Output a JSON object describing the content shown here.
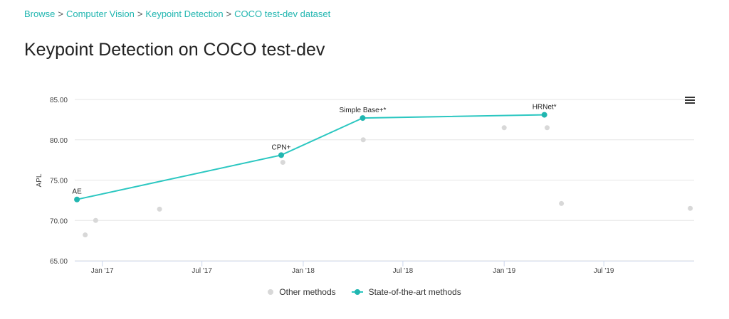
{
  "breadcrumb": {
    "items": [
      "Browse",
      "Computer Vision",
      "Keypoint Detection",
      "COCO test-dev dataset"
    ],
    "separator": ">"
  },
  "page": {
    "title": "Keypoint Detection on COCO test-dev"
  },
  "colors": {
    "accent": "#21b6b0",
    "sota_line": "#2bc7c1",
    "other_points": "#d8d8d8",
    "gridline": "#e6e6e6"
  },
  "menu": {
    "icon": "hamburger-menu-icon"
  },
  "chart_data": {
    "type": "scatter",
    "ylabel": "APL",
    "xlabel": "",
    "ylim": [
      65,
      85
    ],
    "yticks": [
      "65.00",
      "70.00",
      "75.00",
      "80.00",
      "85.00"
    ],
    "xlim": [
      "2016-11-12",
      "2019-12-12"
    ],
    "xticks": [
      {
        "date": "2017-01-01",
        "label": "Jan '17"
      },
      {
        "date": "2017-07-01",
        "label": "Jul '17"
      },
      {
        "date": "2018-01-01",
        "label": "Jan '18"
      },
      {
        "date": "2018-07-01",
        "label": "Jul '18"
      },
      {
        "date": "2019-01-01",
        "label": "Jan '19"
      },
      {
        "date": "2019-07-01",
        "label": "Jul '19"
      }
    ],
    "grid": true,
    "legend_position": "bottom",
    "series": [
      {
        "name": "Other methods",
        "color": "#d8d8d8",
        "points": [
          {
            "x": "2016-12-01",
            "y": 68.2
          },
          {
            "x": "2016-12-20",
            "y": 70.0
          },
          {
            "x": "2017-04-15",
            "y": 71.4
          },
          {
            "x": "2017-11-25",
            "y": 77.2
          },
          {
            "x": "2018-04-20",
            "y": 80.0
          },
          {
            "x": "2019-01-01",
            "y": 81.5
          },
          {
            "x": "2019-03-20",
            "y": 81.5
          },
          {
            "x": "2019-04-15",
            "y": 72.1
          },
          {
            "x": "2019-12-05",
            "y": 71.5
          }
        ]
      },
      {
        "name": "State-of-the-art methods",
        "color": "#21b6b0",
        "points": [
          {
            "x": "2016-11-16",
            "y": 72.6,
            "label": "AE"
          },
          {
            "x": "2017-11-22",
            "y": 78.1,
            "label": "CPN+"
          },
          {
            "x": "2018-04-19",
            "y": 82.7,
            "label": "Simple Base+*"
          },
          {
            "x": "2019-03-15",
            "y": 83.1,
            "label": "HRNet*"
          }
        ]
      }
    ]
  },
  "legend": {
    "items": [
      {
        "label": "Other methods"
      },
      {
        "label": "State-of-the-art methods"
      }
    ]
  }
}
